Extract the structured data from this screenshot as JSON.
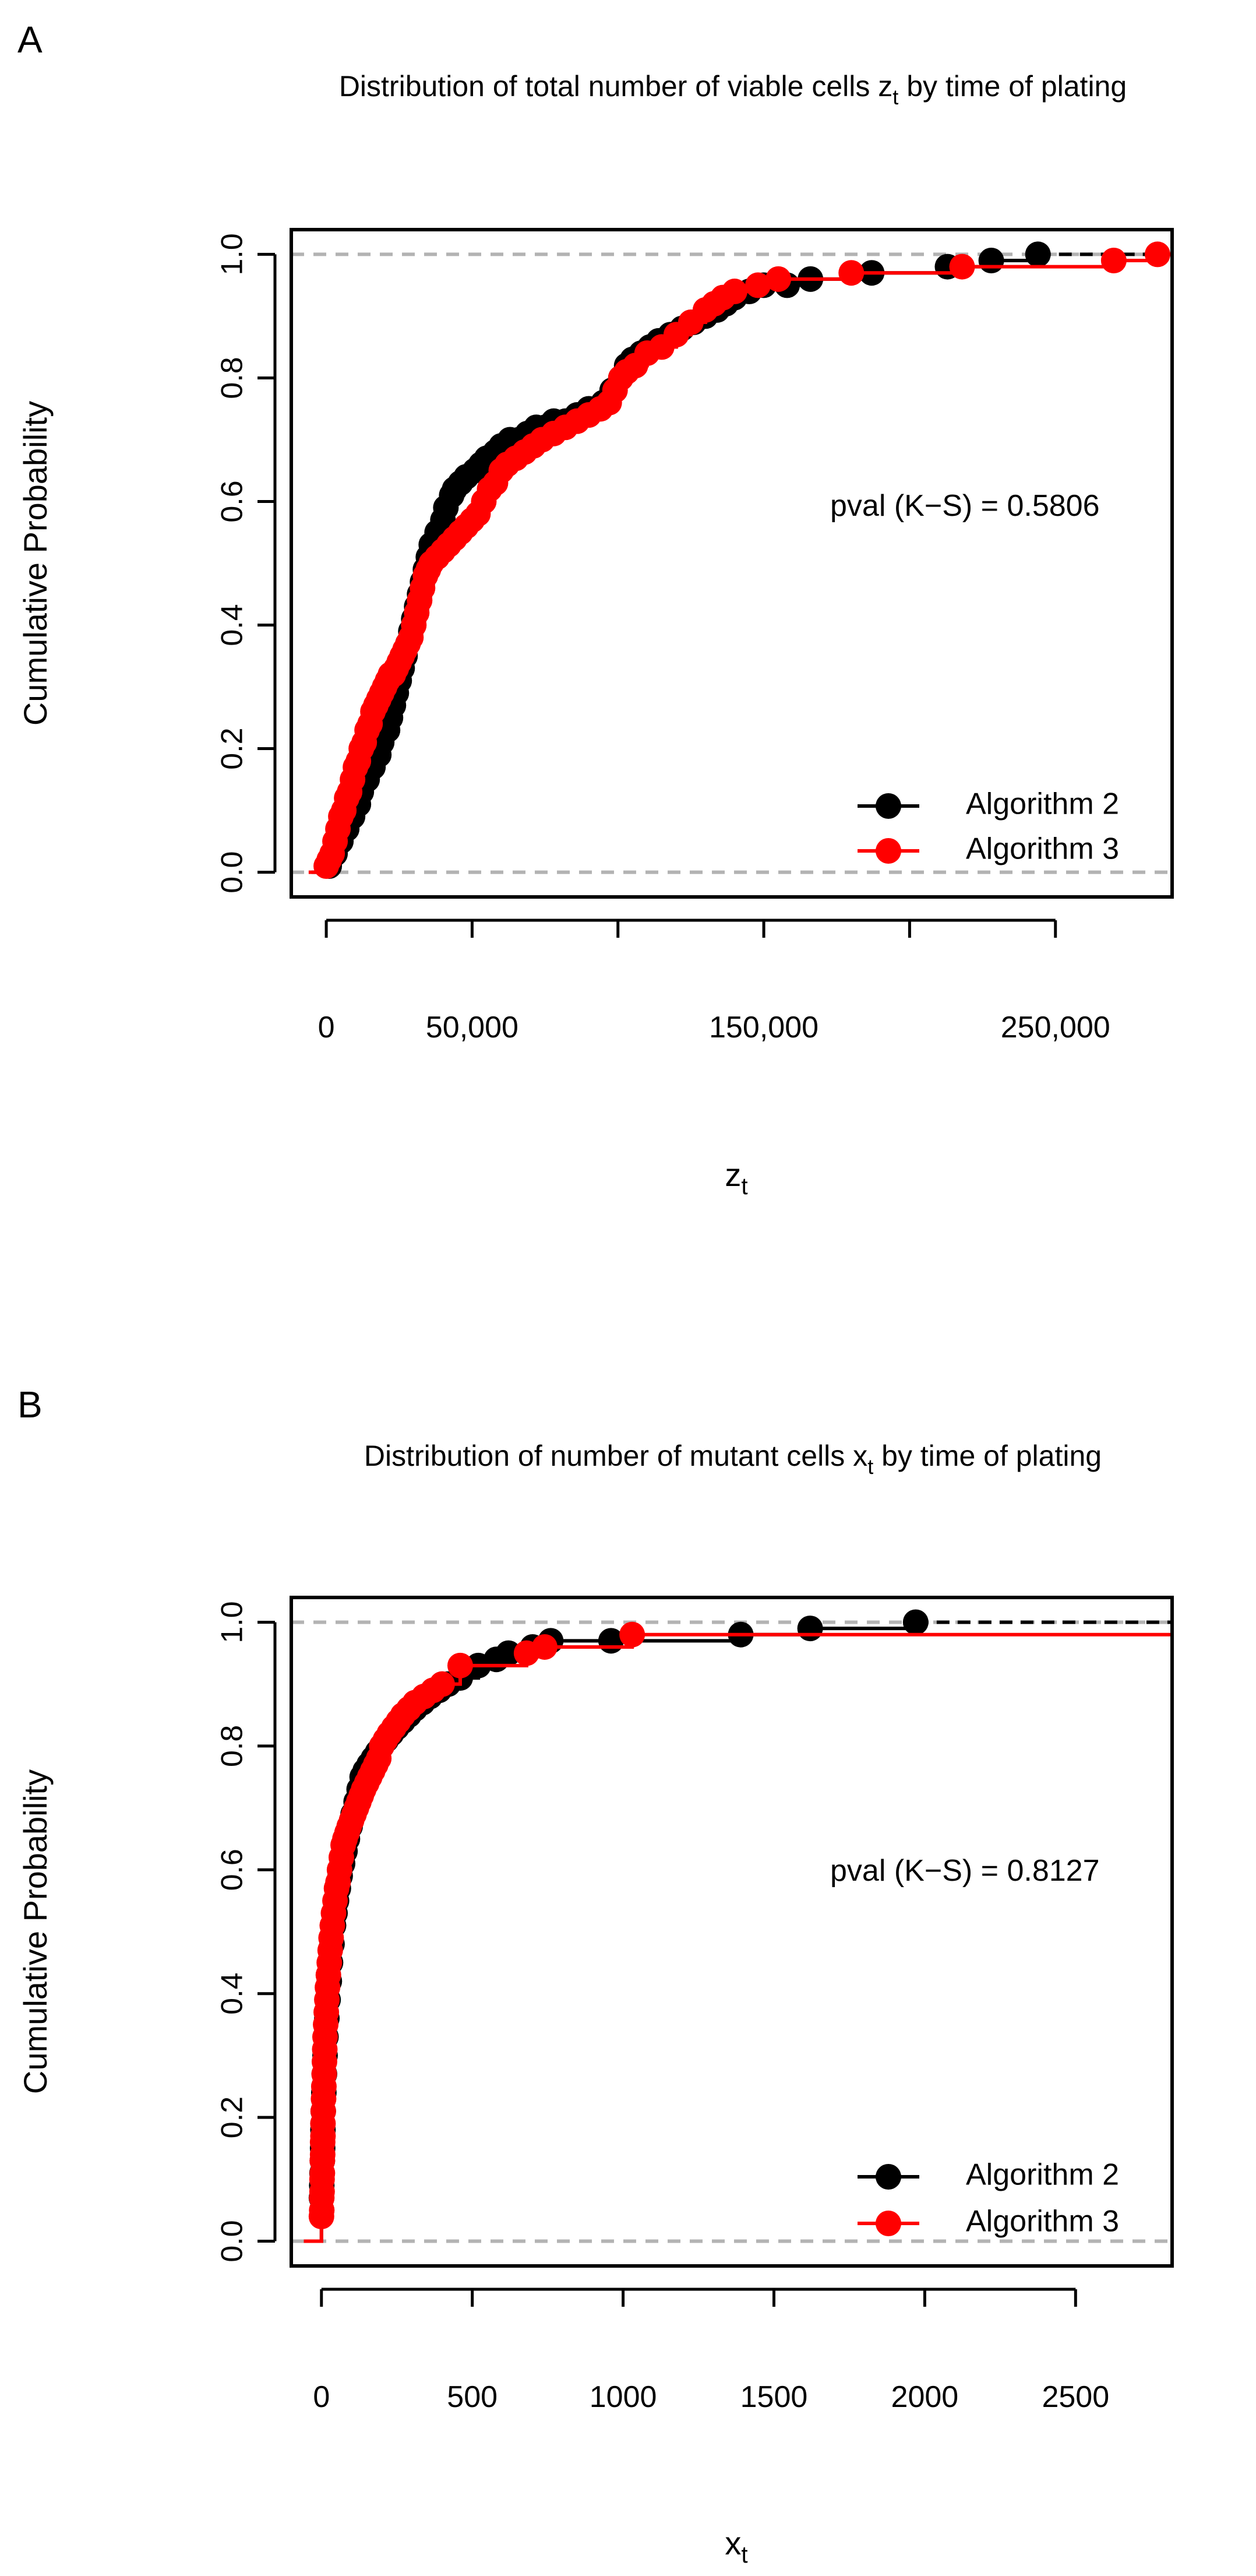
{
  "chart_data": [
    {
      "panel": "A",
      "type": "line",
      "subtype": "ecdf",
      "title_main": "Distribution of total number of viable cells z",
      "title_sub": "t",
      "title_rest": " by time of plating",
      "xlabel_main": "z",
      "xlabel_sub": "t",
      "ylabel": "Cumulative Probability",
      "xlim": [
        -12000,
        290000
      ],
      "ylim": [
        -0.04,
        1.04
      ],
      "x_ticks": [
        0,
        50000,
        100000,
        150000,
        200000,
        250000
      ],
      "x_tick_labels": [
        "0",
        "50,000",
        "",
        "150,000",
        "",
        "250,000"
      ],
      "y_ticks": [
        0.0,
        0.2,
        0.4,
        0.6,
        0.8,
        1.0
      ],
      "y_tick_labels": [
        "0.0",
        "0.2",
        "0.4",
        "0.6",
        "0.8",
        "1.0"
      ],
      "reference_lines": [
        0,
        1
      ],
      "annotation": "pval (K−S) = 0.5806",
      "legend": [
        "Algorithm 2",
        "Algorithm 3"
      ],
      "legend_position": "bottom-right",
      "series": [
        {
          "name": "Algorithm 2",
          "color": "#000000",
          "linestyle": "dashed-tail",
          "x": [
            1000,
            3000,
            5000,
            7000,
            9000,
            11000,
            12000,
            14000,
            16000,
            18000,
            19000,
            21000,
            22000,
            23000,
            24000,
            25000,
            26000,
            27000,
            28000,
            29000,
            30000,
            31000,
            32000,
            33000,
            34000,
            35000,
            36000,
            38000,
            40000,
            41000,
            43000,
            44000,
            46000,
            48000,
            51000,
            53000,
            55000,
            58000,
            60000,
            63000,
            66000,
            69000,
            72000,
            75000,
            78000,
            82000,
            86000,
            90000,
            95000,
            98000,
            101000,
            103000,
            105000,
            108000,
            111000,
            114000,
            118000,
            122000,
            126000,
            130000,
            134000,
            137000,
            140000,
            145000,
            150000,
            158000,
            166000,
            187000,
            213000,
            228000,
            244000
          ],
          "y": [
            0.01,
            0.03,
            0.05,
            0.07,
            0.09,
            0.11,
            0.13,
            0.15,
            0.17,
            0.19,
            0.21,
            0.23,
            0.25,
            0.27,
            0.29,
            0.31,
            0.33,
            0.35,
            0.37,
            0.39,
            0.41,
            0.43,
            0.45,
            0.47,
            0.49,
            0.51,
            0.53,
            0.55,
            0.57,
            0.59,
            0.61,
            0.62,
            0.63,
            0.64,
            0.65,
            0.66,
            0.67,
            0.68,
            0.69,
            0.7,
            0.7,
            0.71,
            0.72,
            0.72,
            0.73,
            0.73,
            0.74,
            0.75,
            0.76,
            0.78,
            0.8,
            0.82,
            0.83,
            0.84,
            0.85,
            0.86,
            0.87,
            0.88,
            0.89,
            0.9,
            0.91,
            0.92,
            0.93,
            0.94,
            0.95,
            0.95,
            0.96,
            0.97,
            0.98,
            0.99,
            1.0
          ]
        },
        {
          "name": "Algorithm 3",
          "color": "#ff0000",
          "linestyle": "solid",
          "x": [
            0,
            1000,
            2000,
            3000,
            4000,
            5000,
            6000,
            7000,
            8000,
            9000,
            10000,
            11000,
            12000,
            13000,
            14000,
            15000,
            16000,
            17000,
            18000,
            19000,
            20000,
            21000,
            22000,
            23000,
            24000,
            25000,
            26000,
            27000,
            28000,
            29000,
            30000,
            31000,
            32000,
            33000,
            34000,
            35000,
            36000,
            38000,
            40000,
            42000,
            44000,
            46000,
            48000,
            50000,
            52000,
            54000,
            56000,
            58000,
            60000,
            62000,
            65000,
            68000,
            71000,
            74000,
            78000,
            82000,
            86000,
            90000,
            94000,
            97000,
            99000,
            101000,
            103000,
            106000,
            110000,
            115000,
            120000,
            125000,
            130000,
            133000,
            136000,
            140000,
            148000,
            155000,
            180000,
            218000,
            270000,
            285000
          ],
          "y": [
            0.01,
            0.02,
            0.03,
            0.05,
            0.07,
            0.09,
            0.1,
            0.12,
            0.13,
            0.15,
            0.17,
            0.18,
            0.2,
            0.21,
            0.23,
            0.24,
            0.26,
            0.27,
            0.28,
            0.29,
            0.3,
            0.31,
            0.32,
            0.32,
            0.33,
            0.34,
            0.35,
            0.36,
            0.37,
            0.38,
            0.4,
            0.42,
            0.44,
            0.46,
            0.48,
            0.49,
            0.5,
            0.51,
            0.52,
            0.53,
            0.54,
            0.55,
            0.56,
            0.57,
            0.58,
            0.6,
            0.62,
            0.63,
            0.65,
            0.66,
            0.67,
            0.68,
            0.69,
            0.7,
            0.71,
            0.72,
            0.73,
            0.74,
            0.75,
            0.76,
            0.78,
            0.8,
            0.81,
            0.82,
            0.84,
            0.85,
            0.87,
            0.89,
            0.91,
            0.92,
            0.93,
            0.94,
            0.95,
            0.96,
            0.97,
            0.98,
            0.99,
            1.0
          ]
        }
      ]
    },
    {
      "panel": "B",
      "type": "line",
      "subtype": "ecdf",
      "title_main": "Distribution of number of mutant cells x",
      "title_sub": "t",
      "title_rest": " by time of plating",
      "xlabel_main": "x",
      "xlabel_sub": "t",
      "ylabel": "Cumulative Probability",
      "xlim": [
        -100,
        2820
      ],
      "ylim": [
        -0.04,
        1.04
      ],
      "x_ticks": [
        0,
        500,
        1000,
        1500,
        2000,
        2500
      ],
      "x_tick_labels": [
        "0",
        "500",
        "1000",
        "1500",
        "2000",
        "2500"
      ],
      "y_ticks": [
        0.0,
        0.2,
        0.4,
        0.6,
        0.8,
        1.0
      ],
      "y_tick_labels": [
        "0.0",
        "0.2",
        "0.4",
        "0.6",
        "0.8",
        "1.0"
      ],
      "reference_lines": [
        0,
        1
      ],
      "annotation": "pval (K−S) = 0.8127",
      "legend": [
        "Algorithm 2",
        "Algorithm 3"
      ],
      "legend_position": "bottom-right",
      "series": [
        {
          "name": "Algorithm 2",
          "color": "#000000",
          "linestyle": "dashed-tail",
          "x": [
            0,
            1,
            2,
            3,
            4,
            5,
            6,
            8,
            10,
            12,
            15,
            18,
            22,
            26,
            30,
            35,
            40,
            45,
            50,
            56,
            62,
            70,
            78,
            86,
            95,
            105,
            115,
            125,
            135,
            145,
            158,
            172,
            186,
            200,
            215,
            232,
            250,
            270,
            290,
            310,
            335,
            360,
            390,
            420,
            460,
            520,
            580,
            620,
            700,
            760,
            960,
            1390,
            1620,
            1970
          ],
          "y": [
            0.07,
            0.09,
            0.11,
            0.13,
            0.15,
            0.18,
            0.21,
            0.24,
            0.27,
            0.3,
            0.33,
            0.36,
            0.39,
            0.42,
            0.45,
            0.48,
            0.51,
            0.53,
            0.55,
            0.57,
            0.59,
            0.61,
            0.63,
            0.65,
            0.67,
            0.69,
            0.71,
            0.73,
            0.75,
            0.76,
            0.77,
            0.78,
            0.79,
            0.8,
            0.81,
            0.82,
            0.83,
            0.84,
            0.85,
            0.86,
            0.87,
            0.88,
            0.89,
            0.9,
            0.91,
            0.93,
            0.94,
            0.95,
            0.96,
            0.97,
            0.97,
            0.98,
            0.99,
            1.0
          ]
        },
        {
          "name": "Algorithm 3",
          "color": "#ff0000",
          "linestyle": "solid",
          "x": [
            0,
            1,
            1,
            2,
            2,
            3,
            3,
            4,
            4,
            5,
            5,
            6,
            7,
            8,
            9,
            10,
            11,
            12,
            14,
            16,
            18,
            20,
            23,
            26,
            29,
            32,
            36,
            40,
            45,
            50,
            55,
            60,
            66,
            72,
            78,
            85,
            92,
            100,
            108,
            116,
            124,
            132,
            140,
            150,
            160,
            170,
            180,
            190,
            200,
            212,
            225,
            240,
            255,
            270,
            290,
            310,
            340,
            370,
            400,
            460,
            680,
            740,
            1030
          ],
          "y": [
            0.04,
            0.05,
            0.07,
            0.08,
            0.1,
            0.11,
            0.13,
            0.14,
            0.16,
            0.17,
            0.19,
            0.21,
            0.23,
            0.25,
            0.27,
            0.29,
            0.31,
            0.33,
            0.35,
            0.37,
            0.39,
            0.41,
            0.43,
            0.45,
            0.47,
            0.49,
            0.51,
            0.53,
            0.55,
            0.57,
            0.58,
            0.6,
            0.62,
            0.64,
            0.65,
            0.66,
            0.67,
            0.68,
            0.69,
            0.7,
            0.71,
            0.72,
            0.73,
            0.74,
            0.75,
            0.76,
            0.77,
            0.78,
            0.8,
            0.81,
            0.82,
            0.83,
            0.84,
            0.85,
            0.86,
            0.87,
            0.88,
            0.89,
            0.9,
            0.93,
            0.95,
            0.96,
            0.98
          ]
        }
      ]
    }
  ]
}
